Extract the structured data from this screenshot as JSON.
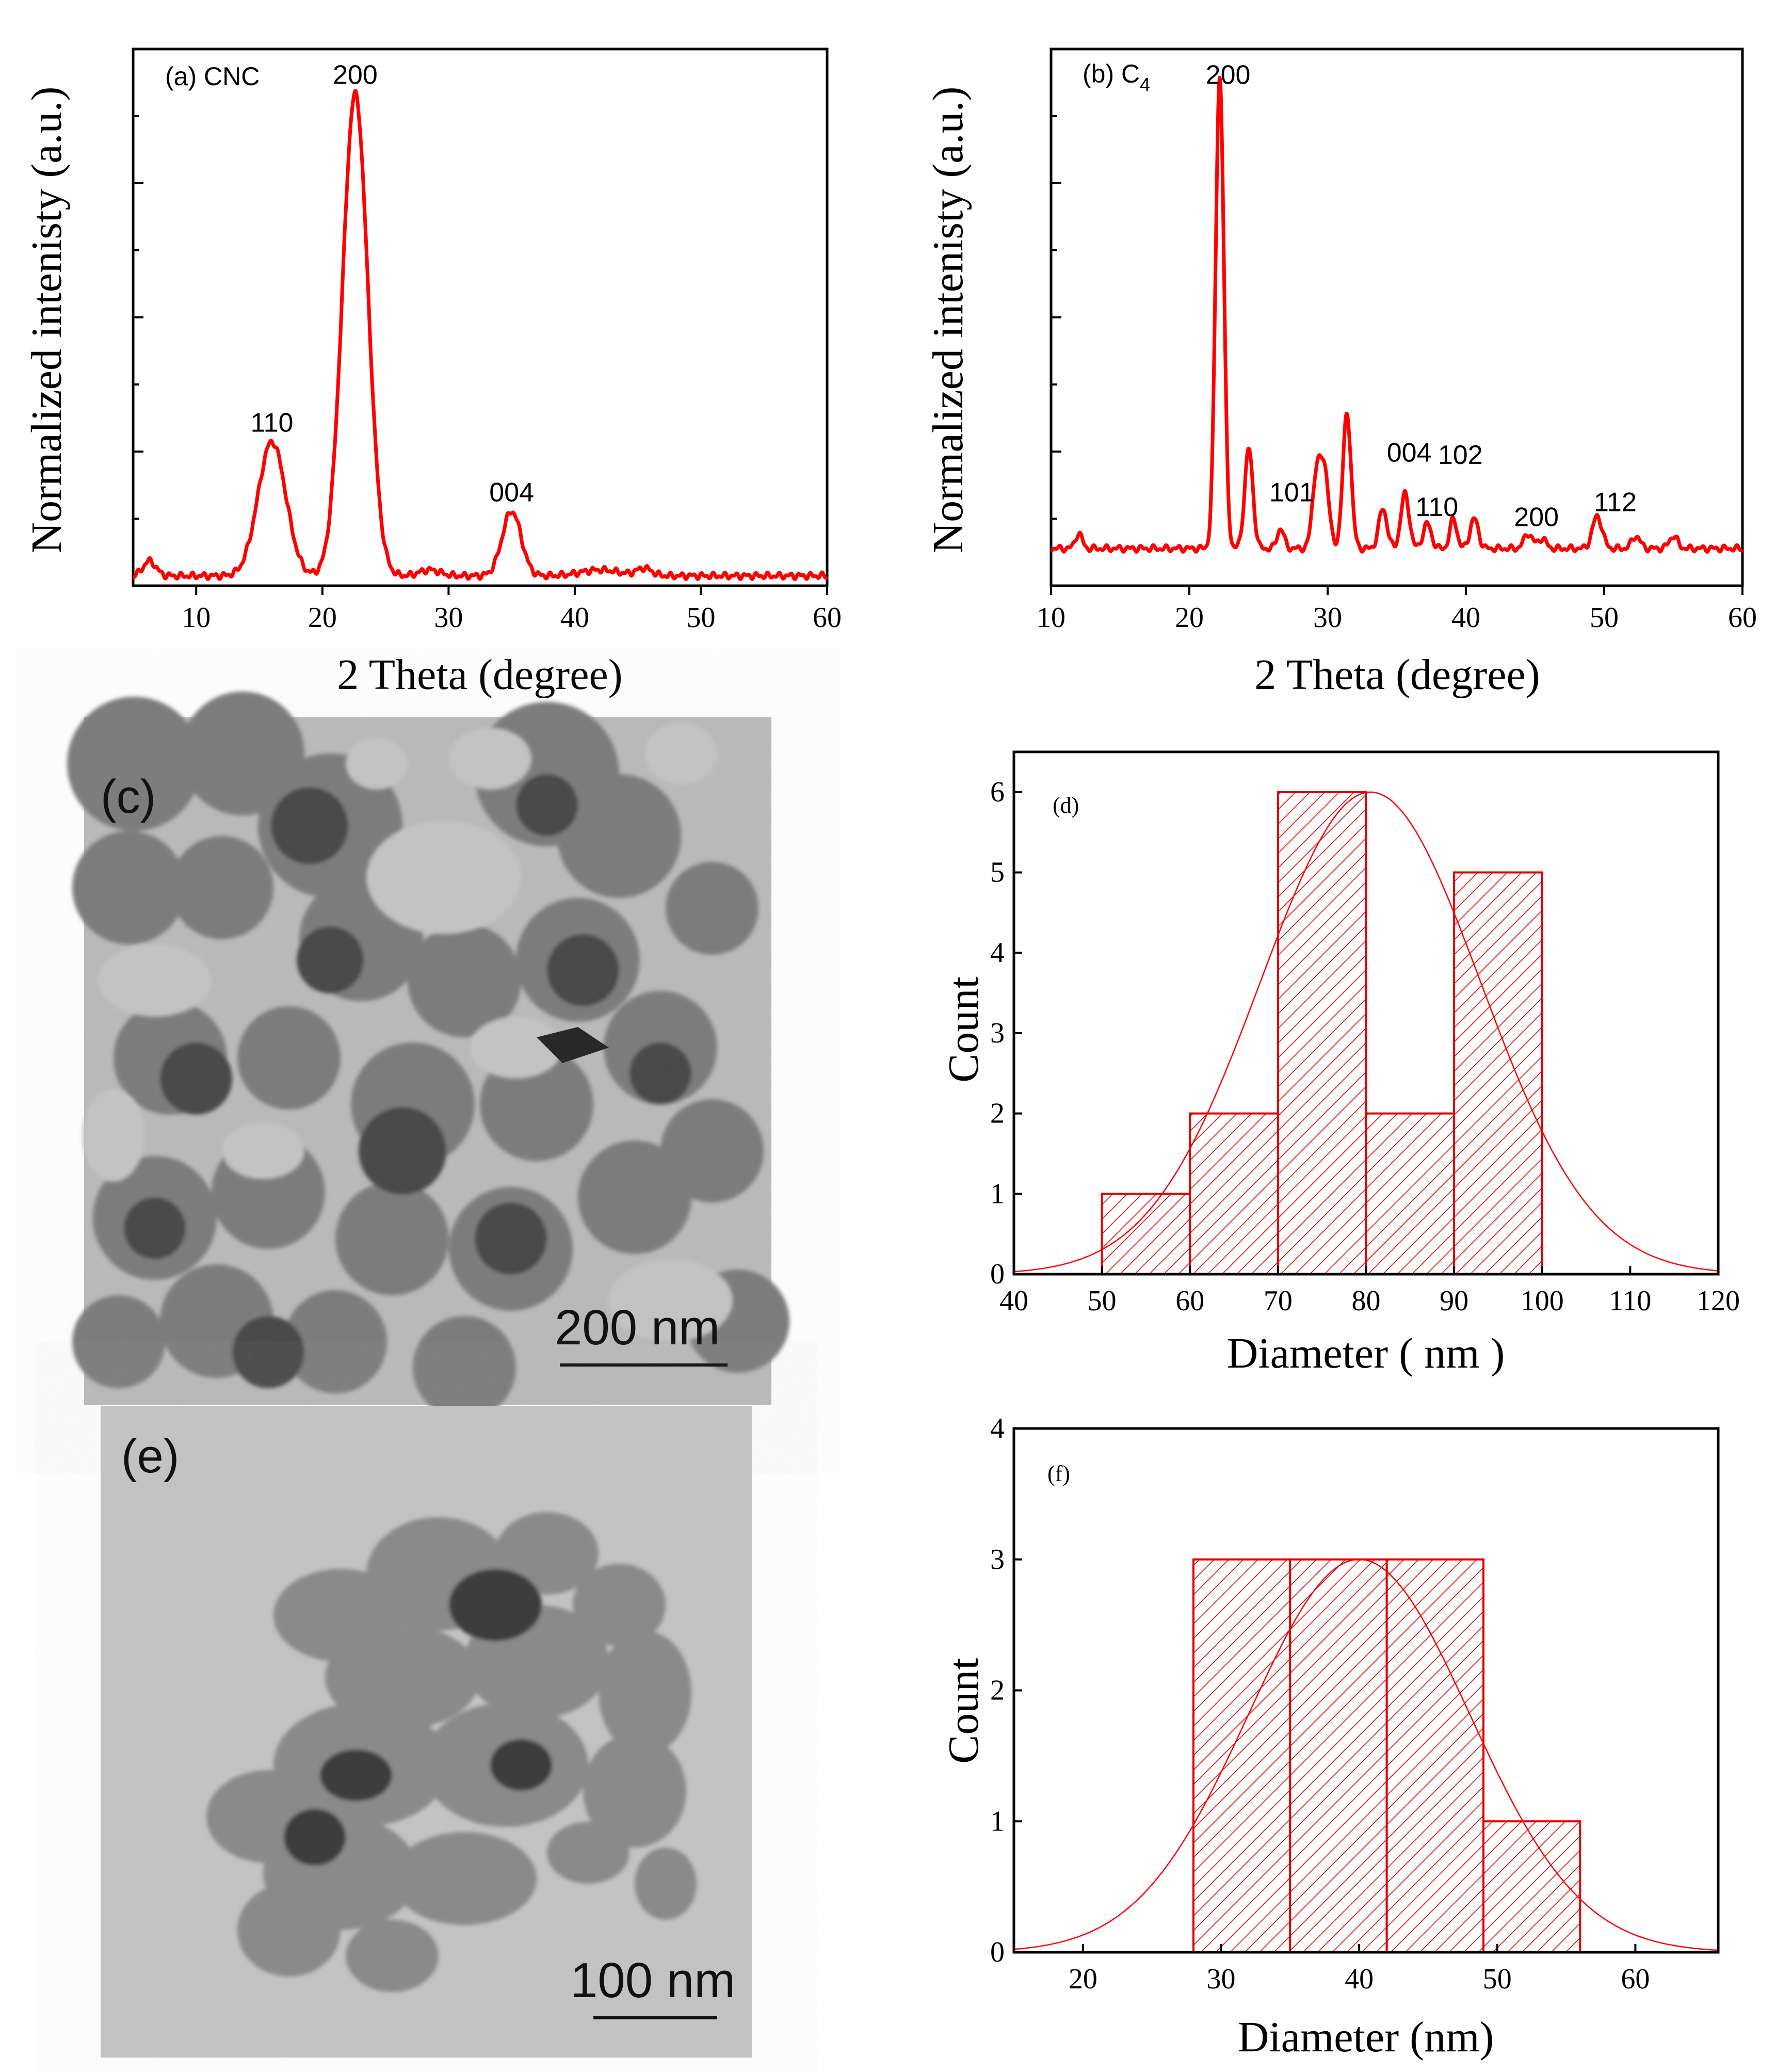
{
  "colors": {
    "accent": "#ff0000",
    "axis": "#000000"
  },
  "chart_data": [
    {
      "id": "a",
      "type": "line",
      "panel_label": "(a) CNC",
      "xlabel": "2 Theta (degree)",
      "ylabel": "Normalized intenisty (a.u.)",
      "xlim": [
        5,
        60
      ],
      "ylim": [
        0,
        1.08
      ],
      "xticks": [
        10,
        20,
        30,
        40,
        50,
        60
      ],
      "baseline": 0.02,
      "peaks": [
        {
          "x": 6.3,
          "h": 0.03,
          "w": 0.5
        },
        {
          "x": 16.0,
          "h": 0.27,
          "w": 1.1
        },
        {
          "x": 22.6,
          "h": 0.97,
          "w": 1.0
        },
        {
          "x": 28.5,
          "h": 0.012,
          "w": 0.8
        },
        {
          "x": 35.0,
          "h": 0.13,
          "w": 0.75
        },
        {
          "x": 42.0,
          "h": 0.012,
          "w": 1.5
        },
        {
          "x": 45.5,
          "h": 0.015,
          "w": 0.6
        }
      ],
      "annotations": [
        {
          "text": "110",
          "x": 16.0,
          "y": 0.31
        },
        {
          "text": "200",
          "x": 22.6,
          "y": 1.01
        },
        {
          "text": "004",
          "x": 35.0,
          "y": 0.17
        }
      ]
    },
    {
      "id": "b",
      "type": "line",
      "panel_label": "(b) C",
      "panel_sub": "4",
      "xlabel": "2 Theta (degree)",
      "ylabel": "Normalized intenisty (a.u.)",
      "xlim": [
        10,
        60
      ],
      "ylim": [
        0,
        1.08
      ],
      "xticks": [
        10,
        20,
        30,
        40,
        50,
        60
      ],
      "baseline": 0.075,
      "peaks": [
        {
          "x": 12.0,
          "h": 0.03,
          "w": 0.25
        },
        {
          "x": 22.2,
          "h": 0.95,
          "w": 0.3
        },
        {
          "x": 24.3,
          "h": 0.2,
          "w": 0.3
        },
        {
          "x": 26.6,
          "h": 0.04,
          "w": 0.25
        },
        {
          "x": 29.2,
          "h": 0.15,
          "w": 0.3
        },
        {
          "x": 29.8,
          "h": 0.15,
          "w": 0.3
        },
        {
          "x": 31.4,
          "h": 0.27,
          "w": 0.3
        },
        {
          "x": 34.0,
          "h": 0.08,
          "w": 0.3
        },
        {
          "x": 35.6,
          "h": 0.11,
          "w": 0.3
        },
        {
          "x": 37.2,
          "h": 0.05,
          "w": 0.3
        },
        {
          "x": 39.1,
          "h": 0.06,
          "w": 0.25
        },
        {
          "x": 40.6,
          "h": 0.06,
          "w": 0.3
        },
        {
          "x": 44.5,
          "h": 0.03,
          "w": 0.3
        },
        {
          "x": 45.5,
          "h": 0.02,
          "w": 0.3
        },
        {
          "x": 49.5,
          "h": 0.065,
          "w": 0.35
        },
        {
          "x": 52.3,
          "h": 0.025,
          "w": 0.3
        },
        {
          "x": 55.0,
          "h": 0.025,
          "w": 0.3
        }
      ],
      "annotations": [
        {
          "text": "200",
          "x": 22.8,
          "y": 1.01
        },
        {
          "text": "101",
          "x": 27.4,
          "y": 0.17
        },
        {
          "text": "004",
          "x": 35.9,
          "y": 0.25
        },
        {
          "text": "102",
          "x": 39.6,
          "y": 0.245
        },
        {
          "text": "110",
          "x": 37.9,
          "y": 0.14
        },
        {
          "text": "200",
          "x": 45.1,
          "y": 0.12
        },
        {
          "text": "112",
          "x": 50.8,
          "y": 0.15
        }
      ]
    },
    {
      "id": "d",
      "type": "bar",
      "panel_label": "(d)",
      "xlabel": "Diameter ( nm )",
      "ylabel": "Count",
      "xlim": [
        40,
        120
      ],
      "ylim": [
        0,
        6.5
      ],
      "xticks": [
        40,
        50,
        60,
        70,
        80,
        90,
        100,
        110,
        120
      ],
      "yticks": [
        0,
        1,
        2,
        3,
        4,
        5,
        6
      ],
      "bins": [
        {
          "x0": 50,
          "x1": 60,
          "count": 1
        },
        {
          "x0": 60,
          "x1": 70,
          "count": 2
        },
        {
          "x0": 70,
          "x1": 80,
          "count": 6
        },
        {
          "x0": 80,
          "x1": 90,
          "count": 2
        },
        {
          "x0": 90,
          "x1": 100,
          "count": 5
        }
      ],
      "fit": {
        "mean": 80.5,
        "sd": 12.5,
        "peak": 6.0
      }
    },
    {
      "id": "f",
      "type": "bar",
      "panel_label": "(f)",
      "xlabel": "Diameter (nm)",
      "ylabel": "Count",
      "xlim": [
        15,
        66
      ],
      "ylim": [
        0,
        4
      ],
      "xticks": [
        20,
        30,
        40,
        50,
        60
      ],
      "yticks": [
        0,
        1,
        2,
        3,
        4
      ],
      "bins": [
        {
          "x0": 28,
          "x1": 35,
          "count": 3
        },
        {
          "x0": 35,
          "x1": 42,
          "count": 3
        },
        {
          "x0": 42,
          "x1": 49,
          "count": 3
        },
        {
          "x0": 49,
          "x1": 56,
          "count": 1
        }
      ],
      "fit": {
        "mean": 40.0,
        "sd": 8.0,
        "peak": 3.0
      }
    }
  ],
  "images": [
    {
      "id": "c",
      "label": "(c)",
      "scale_bar": "200 nm"
    },
    {
      "id": "e",
      "label": "(e)",
      "scale_bar": "100 nm"
    }
  ]
}
